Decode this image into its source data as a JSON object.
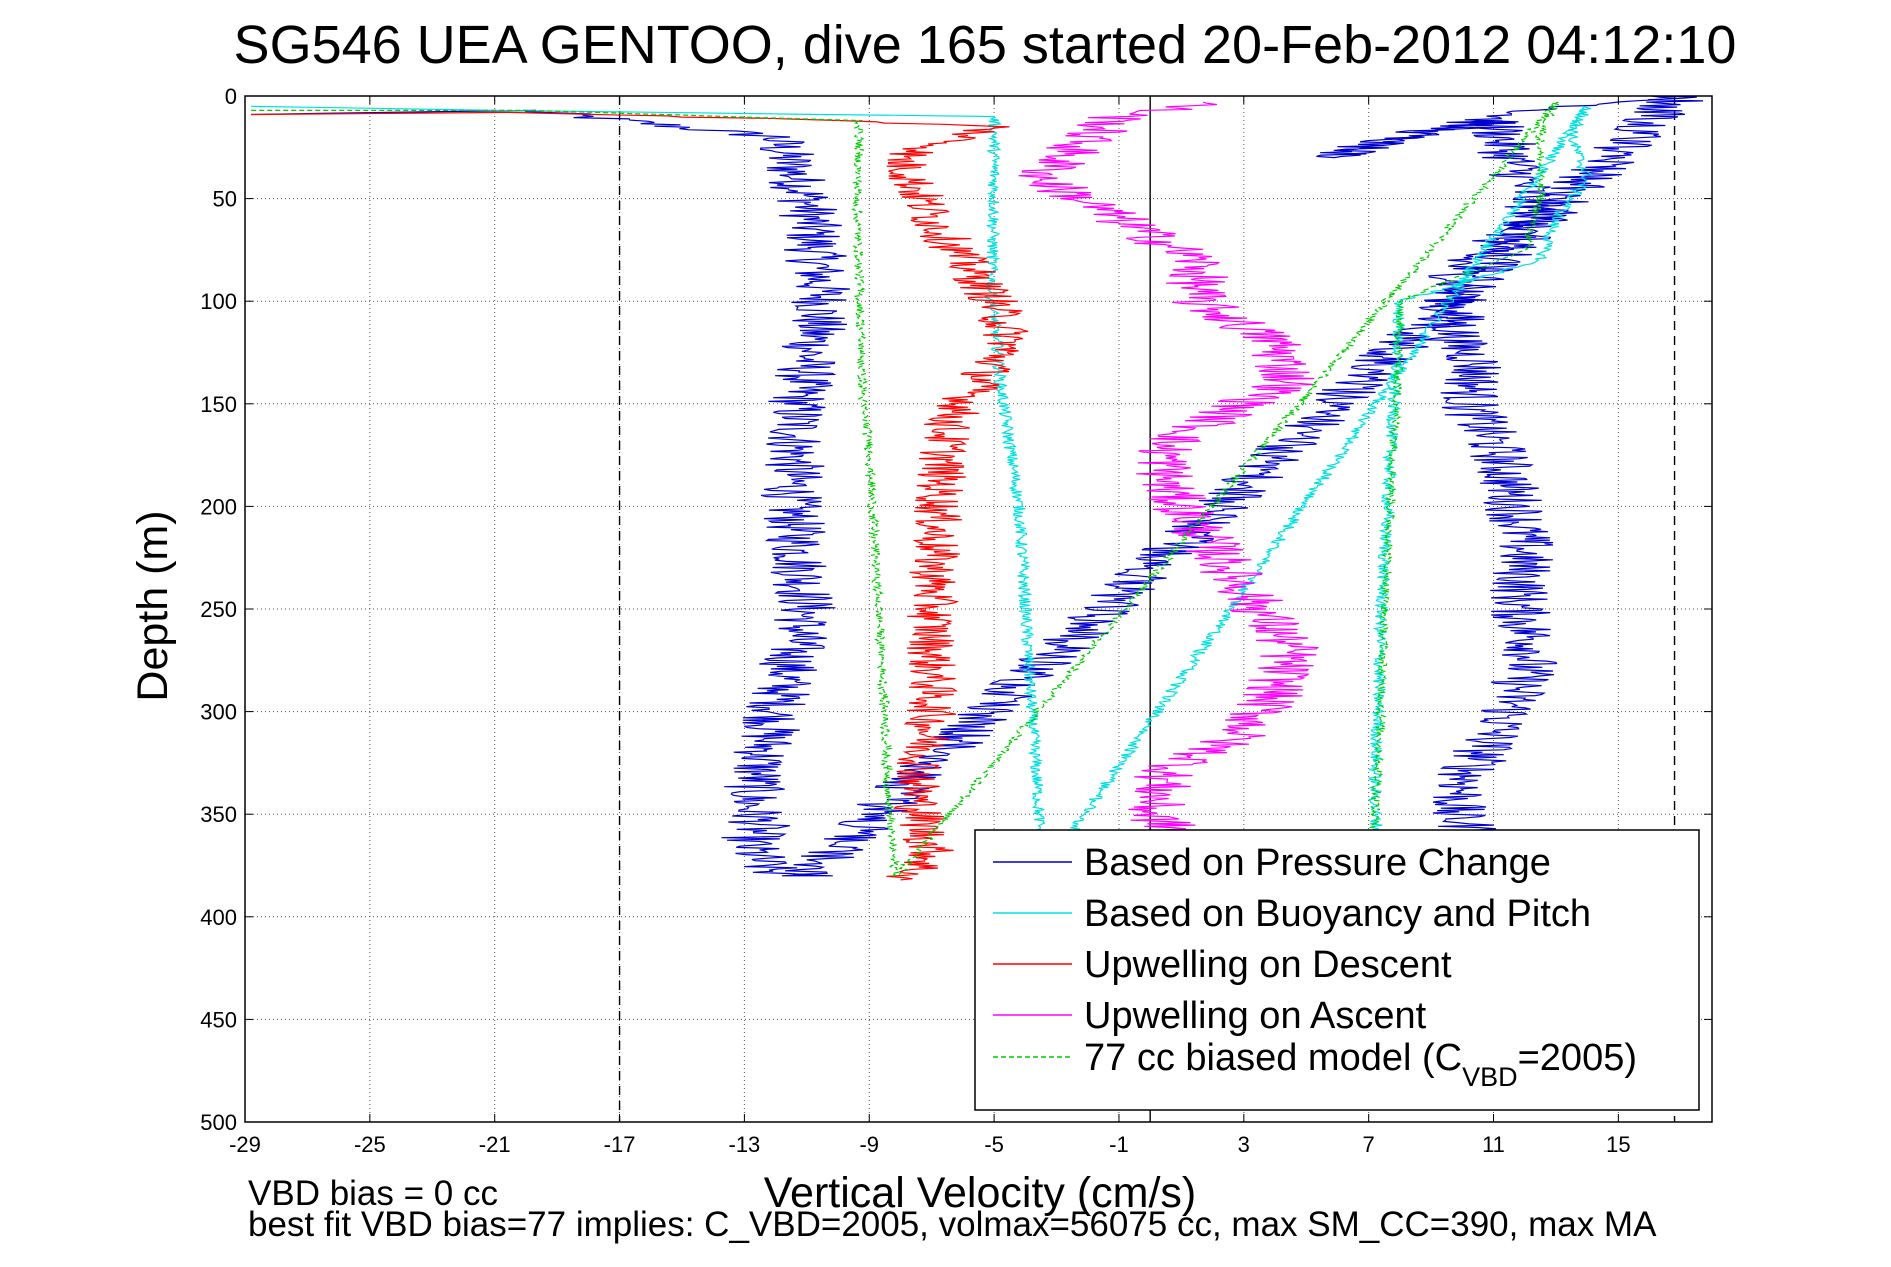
{
  "chart_data": {
    "type": "line",
    "title": "SG546 UEA GENTOO, dive 165 started 20-Feb-2012 04:12:10",
    "xlabel": "Vertical Velocity (cm/s)",
    "ylabel": "Depth (m)",
    "xlim": [
      -29,
      18
    ],
    "ylim": [
      0,
      500
    ],
    "y_reversed": true,
    "grid": true,
    "x_ticks": [
      "-29",
      "-25",
      "-21",
      "-17",
      "-13",
      "-9",
      "-5",
      "-1",
      "3",
      "7",
      "11",
      "15"
    ],
    "x_tick_values": [
      -29,
      -25,
      -21,
      -17,
      -13,
      -9,
      -5,
      -1,
      3,
      7,
      11,
      15
    ],
    "y_ticks": [
      "0",
      "50",
      "100",
      "150",
      "200",
      "250",
      "300",
      "350",
      "400",
      "450",
      "500"
    ],
    "y_tick_values": [
      0,
      50,
      100,
      150,
      200,
      250,
      300,
      350,
      400,
      450,
      500
    ],
    "reference_lines": [
      {
        "x": -17,
        "style": "dashed"
      },
      {
        "x": 0,
        "style": "solid"
      },
      {
        "x": 16.8,
        "style": "dashed"
      }
    ],
    "legend": {
      "position": "bottom-right",
      "entries": [
        {
          "label": "Based on Pressure Change",
          "color": "#0000cc",
          "style": "solid"
        },
        {
          "label": "Based on Buoyancy and Pitch",
          "color": "#00e0e0",
          "style": "solid"
        },
        {
          "label": "Upwelling on Descent",
          "color": "#ff0000",
          "style": "solid"
        },
        {
          "label": "Upwelling on Ascent",
          "color": "#ff00ff",
          "style": "solid"
        },
        {
          "label_main": "77 cc biased model (C",
          "label_sub": "VBD",
          "label_tail": "=2005)",
          "color": "#00cc00",
          "style": "dashed"
        }
      ]
    },
    "series": [
      {
        "color": "#0000cc",
        "style": "solid",
        "noise": 1.0,
        "x": [
          -28.8,
          -20.0,
          -12.0,
          -11.0,
          -10.5,
          -11.3,
          -11.5,
          -11.0,
          -12.0,
          -12.6,
          -12.8,
          -12.5,
          -12.9,
          -12.4,
          -11.8,
          -11.0,
          17.0,
          12.0,
          8.0,
          5.5,
          8.5,
          11.0,
          12.5,
          10.0,
          9.8,
          9.8,
          10.5,
          10.2,
          11.2,
          11.7,
          12.0,
          11.8,
          12.3,
          11.5,
          10.2,
          9.7,
          10.5
        ],
        "y": [
          9,
          7,
          20,
          50,
          100,
          150,
          200,
          250,
          300,
          330,
          345,
          355,
          365,
          375,
          380,
          380,
          0,
          8,
          20,
          30,
          20,
          12,
          60,
          80,
          100,
          120,
          130,
          150,
          175,
          200,
          220,
          250,
          270,
          300,
          330,
          350,
          360
        ]
      },
      {
        "color": "#00e0e0",
        "style": "solid",
        "noise": 0.2,
        "x": [
          -28.8,
          -21.0,
          -5.0,
          -5.0,
          -5.1,
          -4.9,
          -4.8,
          -4.6,
          -4.2,
          -4.0,
          -3.8,
          -3.6,
          -3.5,
          -3.5,
          -3.5,
          14.0,
          13.5,
          14.0,
          13.0,
          12.5,
          8.0,
          7.8,
          7.6,
          7.4,
          7.3,
          7.2,
          7.2,
          7.3
        ],
        "y": [
          5,
          7,
          10,
          50,
          100,
          120,
          140,
          160,
          200,
          250,
          300,
          340,
          370,
          378,
          380,
          5,
          20,
          40,
          60,
          80,
          100,
          150,
          200,
          250,
          300,
          330,
          350,
          360
        ]
      },
      {
        "color": "#ff0000",
        "style": "solid",
        "noise": 0.8,
        "x": [
          -28.8,
          -20.0,
          -10.0,
          -5.0,
          -8.0,
          -7.0,
          -5.0,
          -4.5,
          -6.5,
          -6.8,
          -7.0,
          -7.0,
          -7.5,
          -7.2,
          -7.0,
          -7.5,
          -8.0
        ],
        "y": [
          9,
          8,
          12,
          15,
          30,
          60,
          100,
          120,
          160,
          200,
          250,
          300,
          340,
          360,
          370,
          378,
          382
        ]
      },
      {
        "color": "#ff00ff",
        "style": "solid",
        "noise": 1.0,
        "x": [
          2.0,
          -1.0,
          -2.0,
          -3.5,
          -1.0,
          1.5,
          1.5,
          4.0,
          4.5,
          3.0,
          0.5,
          0.5,
          2.0,
          3.5,
          4.5,
          4.0,
          3.0,
          0.5,
          0.0,
          1.0
        ],
        "y": [
          3,
          10,
          20,
          40,
          60,
          80,
          100,
          120,
          140,
          150,
          170,
          190,
          220,
          250,
          270,
          290,
          310,
          330,
          350,
          360
        ]
      },
      {
        "color": "#00cc00",
        "style": "dashed",
        "noise": 0.15,
        "x": [
          -28.8,
          -20.0,
          -9.3,
          -9.4,
          -9.3,
          -9.2,
          -9.0,
          -8.9,
          -8.7,
          -8.5,
          -8.4,
          -8.3,
          -8.2,
          -8.1,
          13.0,
          12.5,
          12.5,
          12.0,
          8.0,
          7.9,
          7.7,
          7.5,
          7.4,
          7.3,
          7.2,
          7.2
        ],
        "y": [
          7,
          7,
          12,
          50,
          100,
          150,
          170,
          200,
          250,
          300,
          340,
          360,
          375,
          380,
          3,
          20,
          50,
          75,
          100,
          150,
          200,
          250,
          300,
          330,
          350,
          360
        ]
      }
    ]
  },
  "footer": {
    "bias_line": "VBD bias = 0 cc",
    "fit_line": "best fit VBD bias=77 implies: C_VBD=2005, volmax=56075 cc, max SM_CC=390, max MA"
  }
}
